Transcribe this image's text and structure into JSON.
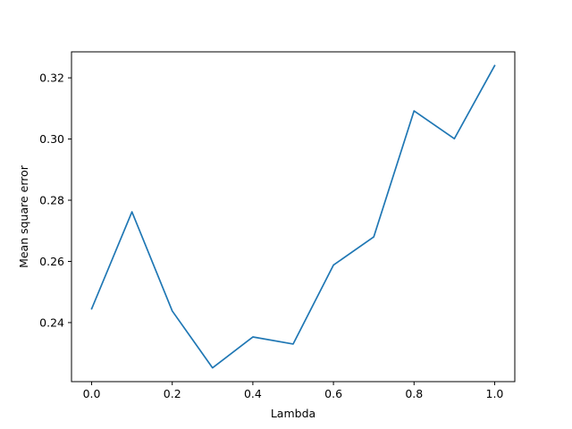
{
  "chart_data": {
    "type": "line",
    "title": "",
    "xlabel": "Lambda",
    "ylabel": "Mean square error",
    "xlim": [
      -0.05,
      1.05
    ],
    "ylim": [
      0.2207,
      0.3285
    ],
    "xticks": [
      0.0,
      0.2,
      0.4,
      0.6,
      0.8,
      1.0
    ],
    "xtick_labels": [
      "0.0",
      "0.2",
      "0.4",
      "0.6",
      "0.8",
      "1.0"
    ],
    "yticks": [
      0.24,
      0.26,
      0.28,
      0.3,
      0.32
    ],
    "ytick_labels": [
      "0.24",
      "0.26",
      "0.28",
      "0.30",
      "0.32"
    ],
    "grid": false,
    "legend": "none",
    "series": [
      {
        "color": "#1f77b4",
        "x": [
          0.0,
          0.1,
          0.2,
          0.3,
          0.4,
          0.5,
          0.6,
          0.7,
          0.8,
          0.9,
          1.0
        ],
        "y": [
          0.2445,
          0.2762,
          0.2438,
          0.2252,
          0.2353,
          0.233,
          0.2588,
          0.268,
          0.3092,
          0.3001,
          0.324
        ]
      }
    ]
  }
}
